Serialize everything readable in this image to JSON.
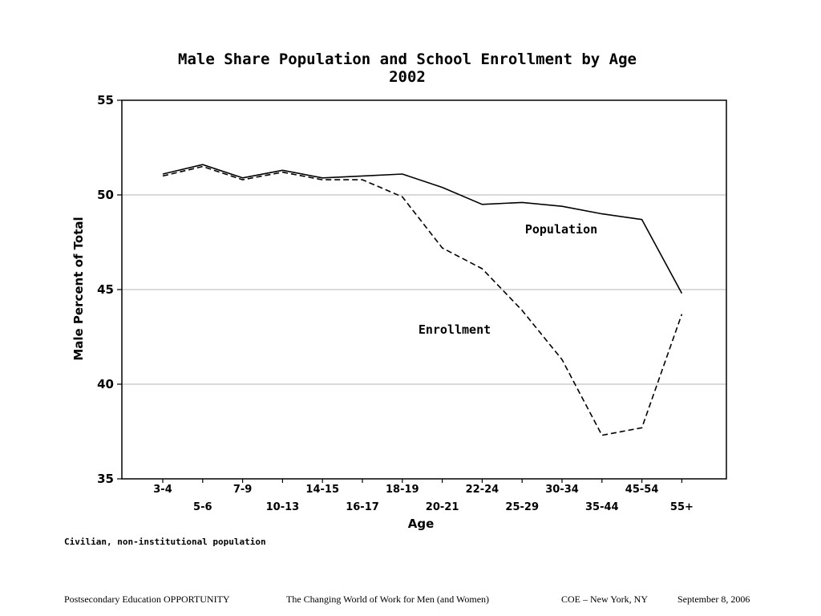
{
  "chart_data": {
    "type": "line",
    "title": "Male Share Population and School Enrollment by Age",
    "subtitle": "2002",
    "xlabel": "Age",
    "ylabel": "Male Percent of Total",
    "ylim": [
      35,
      55
    ],
    "yticks": [
      35,
      40,
      45,
      50,
      55
    ],
    "grid": true,
    "categories": [
      "3-4",
      "5-6",
      "7-9",
      "10-13",
      "14-15",
      "16-17",
      "18-19",
      "20-21",
      "22-24",
      "25-29",
      "30-34",
      "35-44",
      "45-54",
      "55+"
    ],
    "series": [
      {
        "name": "Population",
        "style": "solid",
        "values": [
          51.1,
          51.6,
          50.9,
          51.3,
          50.9,
          51.0,
          51.1,
          50.4,
          49.5,
          49.6,
          49.4,
          49.0,
          48.7,
          44.8
        ]
      },
      {
        "name": "Enrollment",
        "style": "dashed",
        "values": [
          51.0,
          51.5,
          50.8,
          51.2,
          50.8,
          50.8,
          49.9,
          47.2,
          46.1,
          43.9,
          41.3,
          37.3,
          37.7,
          43.7
        ]
      }
    ],
    "note": "Civilian, non-institutional population"
  },
  "footer": {
    "items": [
      "Postsecondary Education OPPORTUNITY",
      "The Changing World of Work for Men (and Women)",
      "COE – New York, NY",
      "September 8, 2006"
    ]
  }
}
